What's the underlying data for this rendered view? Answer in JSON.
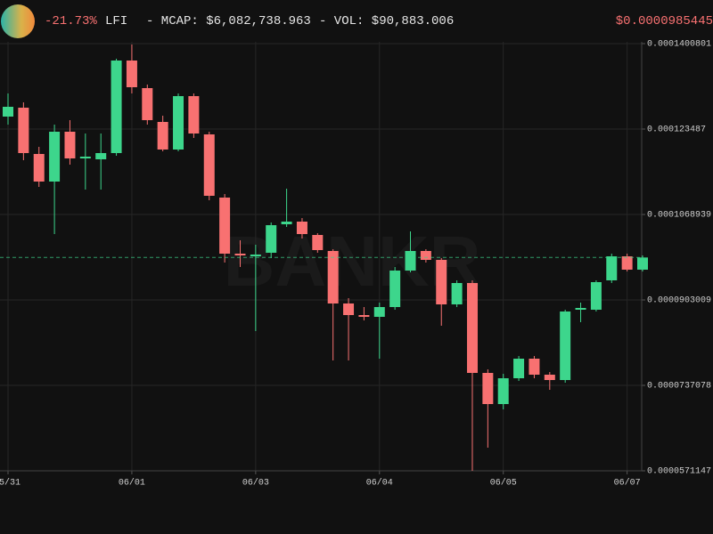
{
  "header": {
    "change": "-21.73%",
    "symbol": "LFI",
    "mcap": "- MCAP: $6,082,738.963",
    "volume": "- VOL: $90,883.006",
    "price": "$0.0000985445"
  },
  "chart_data": {
    "type": "candlestick",
    "watermark": "BANKR",
    "categories": [
      "5/31",
      null,
      null,
      null,
      null,
      null,
      null,
      null,
      "06/01",
      null,
      null,
      null,
      null,
      null,
      null,
      null,
      "06/03",
      null,
      null,
      null,
      null,
      null,
      null,
      null,
      "06/04",
      null,
      null,
      null,
      null,
      null,
      null,
      null,
      "06/05",
      null,
      null,
      null,
      null,
      null,
      null,
      null,
      "06/07",
      null
    ],
    "open": [
      0.000125907,
      0.000127636,
      0.000118648,
      0.00011329,
      0.000122969,
      0.000117784,
      0.000117611,
      0.000118821,
      0.000136797,
      0.000131438,
      0.00012487,
      0.000119512,
      0.000129883,
      0.00012245,
      0.000110178,
      9.9289e-05,
      9.8771e-05,
      9.9462e-05,
      0.000104993,
      0.000105512,
      0.000102919,
      9.9808e-05,
      8.961e-05,
      8.7363e-05,
      8.7017e-05,
      8.8918e-05,
      9.6005e-05,
      9.9808e-05,
      9.8079e-05,
      8.9437e-05,
      9.3585e-05,
      7.6128e-05,
      7.0078e-05,
      7.5091e-05,
      7.8893e-05,
      7.5782e-05,
      7.4745e-05,
      8.84e-05,
      8.84e-05,
      9.4104e-05,
      9.8771e-05,
      9.6178e-05
    ],
    "high": [
      0.000130401,
      0.000128673,
      0.000120031,
      0.000124352,
      0.000125216,
      0.000122623,
      0.000122623,
      0.000137142,
      0.000139908,
      0.00013213,
      0.00012608,
      0.000130401,
      0.000130401,
      0.000122969,
      0.00011087,
      0.000101882,
      0.000101018,
      0.000105339,
      0.000111907,
      0.000106203,
      0.000103265,
      0.000100153,
      9.0647e-05,
      8.8918e-05,
      8.9783e-05,
      9.6697e-05,
      0.00010361,
      0.000100153,
      9.8425e-05,
      9.4104e-05,
      9.4104e-05,
      7.6819e-05,
      7.5955e-05,
      7.9412e-05,
      7.9412e-05,
      7.6301e-05,
      8.84e-05,
      8.9783e-05,
      9.4104e-05,
      9.9289e-05,
      9.9289e-05,
      9.8943e-05
    ],
    "low": [
      0.000124352,
      0.000117438,
      0.000112253,
      0.000103092,
      0.000116574,
      0.000111734,
      0.000111734,
      0.000118302,
      0.000130401,
      0.000124352,
      0.000119166,
      0.000119166,
      0.000121759,
      0.00010966,
      9.7561e-05,
      9.6697e-05,
      8.4252e-05,
      9.8425e-05,
      0.000104475,
      0.000102228,
      9.9462e-05,
      7.8548e-05,
      7.8548e-05,
      8.6326e-05,
      7.8893e-05,
      8.84e-05,
      9.5659e-05,
      9.7561e-05,
      8.5289e-05,
      8.8918e-05,
      5.7115e-05,
      6.1609e-05,
      6.9041e-05,
      7.4572e-05,
      7.5091e-05,
      7.2844e-05,
      7.4227e-05,
      8.598e-05,
      8.8054e-05,
      9.3585e-05,
      9.5832e-05,
      9.5832e-05
    ],
    "close": [
      0.000127809,
      0.000118821,
      0.00011329,
      0.000122969,
      0.000117784,
      0.000118129,
      0.000118821,
      0.000136797,
      0.000131611,
      0.000125216,
      0.000119512,
      0.000129883,
      0.000122623,
      0.000110524,
      9.9289e-05,
      9.8943e-05,
      9.9116e-05,
      0.00010482,
      0.000105512,
      0.000103092,
      9.9981e-05,
      8.961e-05,
      8.7363e-05,
      8.7017e-05,
      8.8918e-05,
      9.6005e-05,
      9.9808e-05,
      9.8079e-05,
      8.9437e-05,
      9.3585e-05,
      7.6128e-05,
      7.0078e-05,
      7.5091e-05,
      7.8893e-05,
      7.5782e-05,
      7.4745e-05,
      8.8054e-05,
      8.8746e-05,
      9.3758e-05,
      9.8771e-05,
      9.6178e-05,
      9.85445e-05
    ],
    "up_color": "#3dd68c",
    "down_color": "#f87171",
    "ylim": [
      5.71147e-05,
      0.0001400801
    ],
    "yticks": [
      5.71147e-05,
      7.37078e-05,
      9.03009e-05,
      0.0001068939,
      0.000123487,
      0.0001400801
    ],
    "grid": true
  }
}
